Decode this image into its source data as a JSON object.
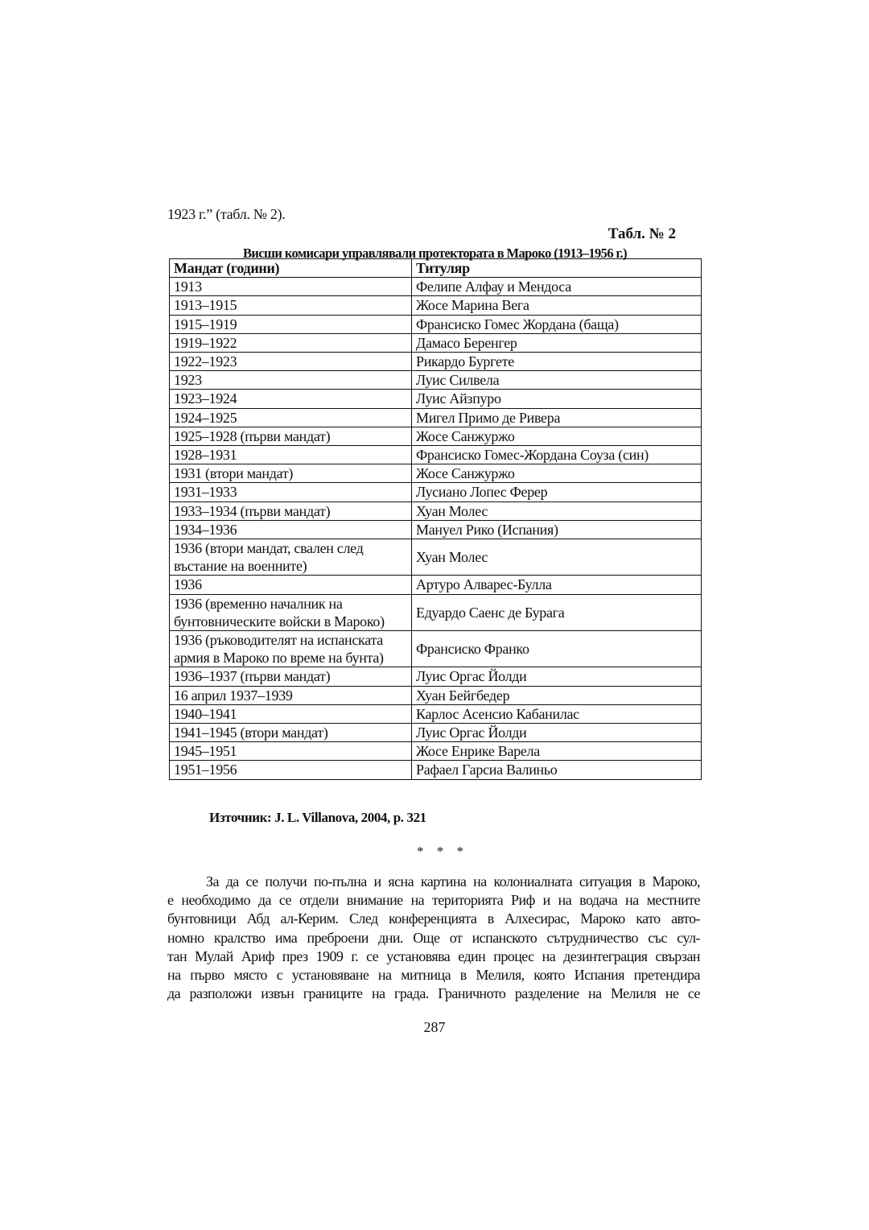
{
  "intro_text": "1923 г.” (табл. № 2).",
  "table_label": "Табл. № 2",
  "table_caption": "Висши комисари управлявали протектората в Мароко (1913–1956 г.)",
  "table": {
    "headers": [
      "Мандат (години)",
      "Титуляр"
    ],
    "rows": [
      [
        "1913",
        "Фелипе Алфау и Мендоса"
      ],
      [
        "1913–1915",
        "Жосе Марина Вега"
      ],
      [
        "1915–1919",
        "Франсиско Гомес Жордана (баща)"
      ],
      [
        "1919–1922",
        "Дамасо Беренгер"
      ],
      [
        "1922–1923",
        "Рикардо Бургете"
      ],
      [
        "1923",
        "Луис Силвела"
      ],
      [
        "1923–1924",
        "Луис Айзпуро"
      ],
      [
        "1924–1925",
        "Мигел Примо де Ривера"
      ],
      [
        "1925–1928 (първи мандат)",
        "Жосе Санжуржо"
      ],
      [
        "1928–1931",
        "Франсиско Гомес-Жордана Соуза (син)"
      ],
      [
        "1931 (втори мандат)",
        "Жосе Санжуржо"
      ],
      [
        "1931–1933",
        "Лусиано Лопес Ферер"
      ],
      [
        "1933–1934 (първи мандат)",
        "Хуан Молес"
      ],
      [
        "1934–1936",
        "Мануел Рико (Испания)"
      ],
      [
        "1936 (втори мандат, свален след въстание на военните)",
        "Хуан Молес"
      ],
      [
        "1936",
        "Артуро Алварес-Булла"
      ],
      [
        "1936 (временно началник на бунтовническите войски в Мароко)",
        "Едуардо Саенс де Бурага"
      ],
      [
        "1936 (ръководителят на испанската армия в Мароко по време на бунта)",
        "Франсиско Франко"
      ],
      [
        "1936–1937 (първи мандат)",
        "Луис Оргас Йолди"
      ],
      [
        "16 април 1937–1939",
        "Хуан Бейгбедер"
      ],
      [
        "1940–1941",
        "Карлос Асенсио Кабанилас"
      ],
      [
        "1941–1945 (втори мандат)",
        "Луис Оргас Йолди"
      ],
      [
        "1945–1951",
        "Жосе Енрике Варела"
      ],
      [
        "1951–1956",
        "Рафаел Гарсиа Валиньо"
      ]
    ]
  },
  "source": "Източник: J. L. Villanova, 2004, p. 321",
  "separator": "* * *",
  "paragraph_lines": [
    "За да се получи по-пълна и ясна картина на колониалната ситуация в Мароко,",
    "е необходимо  да се отдели внимание на територията Риф и на водача на местните",
    "бунтовници Абд ал-Керим. След конференцията в Алхесирас, Мароко като авто-",
    "номно кралство има преброени дни. Още от испанското сътрудничество със сул-",
    "тан Мулай Ариф през 1909 г. се установява един процес на  дезинтеграция свързан",
    "на първо място с установяване на митница в Мелиля, която Испания претендира",
    "да разположи извън границите на града. Граничното разделение на Мелиля не се"
  ],
  "page_number": "287"
}
